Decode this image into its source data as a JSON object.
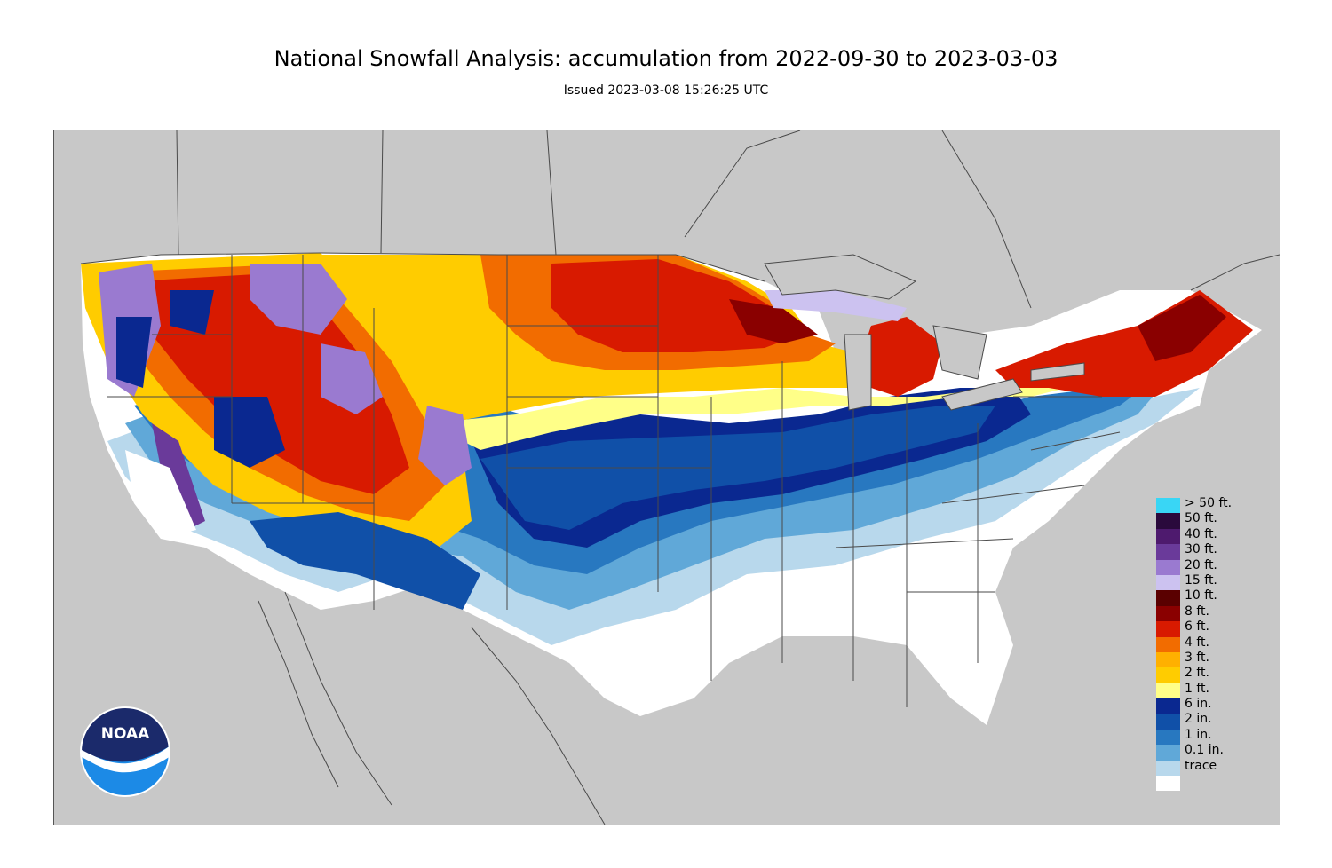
{
  "header": {
    "title": "National Snowfall Analysis: accumulation from 2022-09-30 to 2023-03-03",
    "subtitle": "Issued 2023-03-08 15:26:25 UTC"
  },
  "colors": {
    "background": "#c8c8c8",
    "border_lines": "#4a4a4a"
  },
  "legend": [
    {
      "label": "> 50 ft.",
      "color": "#39d6f5"
    },
    {
      "label": "50 ft.",
      "color": "#2a0a3c"
    },
    {
      "label": "40 ft.",
      "color": "#4e1a6e"
    },
    {
      "label": "30 ft.",
      "color": "#6a3a9a"
    },
    {
      "label": "20 ft.",
      "color": "#9a7ad0"
    },
    {
      "label": "15 ft.",
      "color": "#ccc2f0"
    },
    {
      "label": "10 ft.",
      "color": "#5a0000"
    },
    {
      "label": "8 ft.",
      "color": "#8a0000"
    },
    {
      "label": "6 ft.",
      "color": "#d81a00"
    },
    {
      "label": "4 ft.",
      "color": "#f26c00"
    },
    {
      "label": "3 ft.",
      "color": "#ffb000"
    },
    {
      "label": "2 ft.",
      "color": "#ffcc00"
    },
    {
      "label": "1 ft.",
      "color": "#ffff88"
    },
    {
      "label": "6 in.",
      "color": "#0a2890"
    },
    {
      "label": "2 in.",
      "color": "#1050a8"
    },
    {
      "label": "1 in.",
      "color": "#2878c0"
    },
    {
      "label": "0.1 in.",
      "color": "#60a8d8"
    },
    {
      "label": "trace",
      "color": "#b8d8ec"
    },
    {
      "label": "",
      "color": "#ffffff"
    }
  ],
  "logo": {
    "text": "NOAA",
    "colors": {
      "top": "#1b2a6b",
      "bottom": "#1c8ae6",
      "bird": "#ffffff"
    }
  }
}
